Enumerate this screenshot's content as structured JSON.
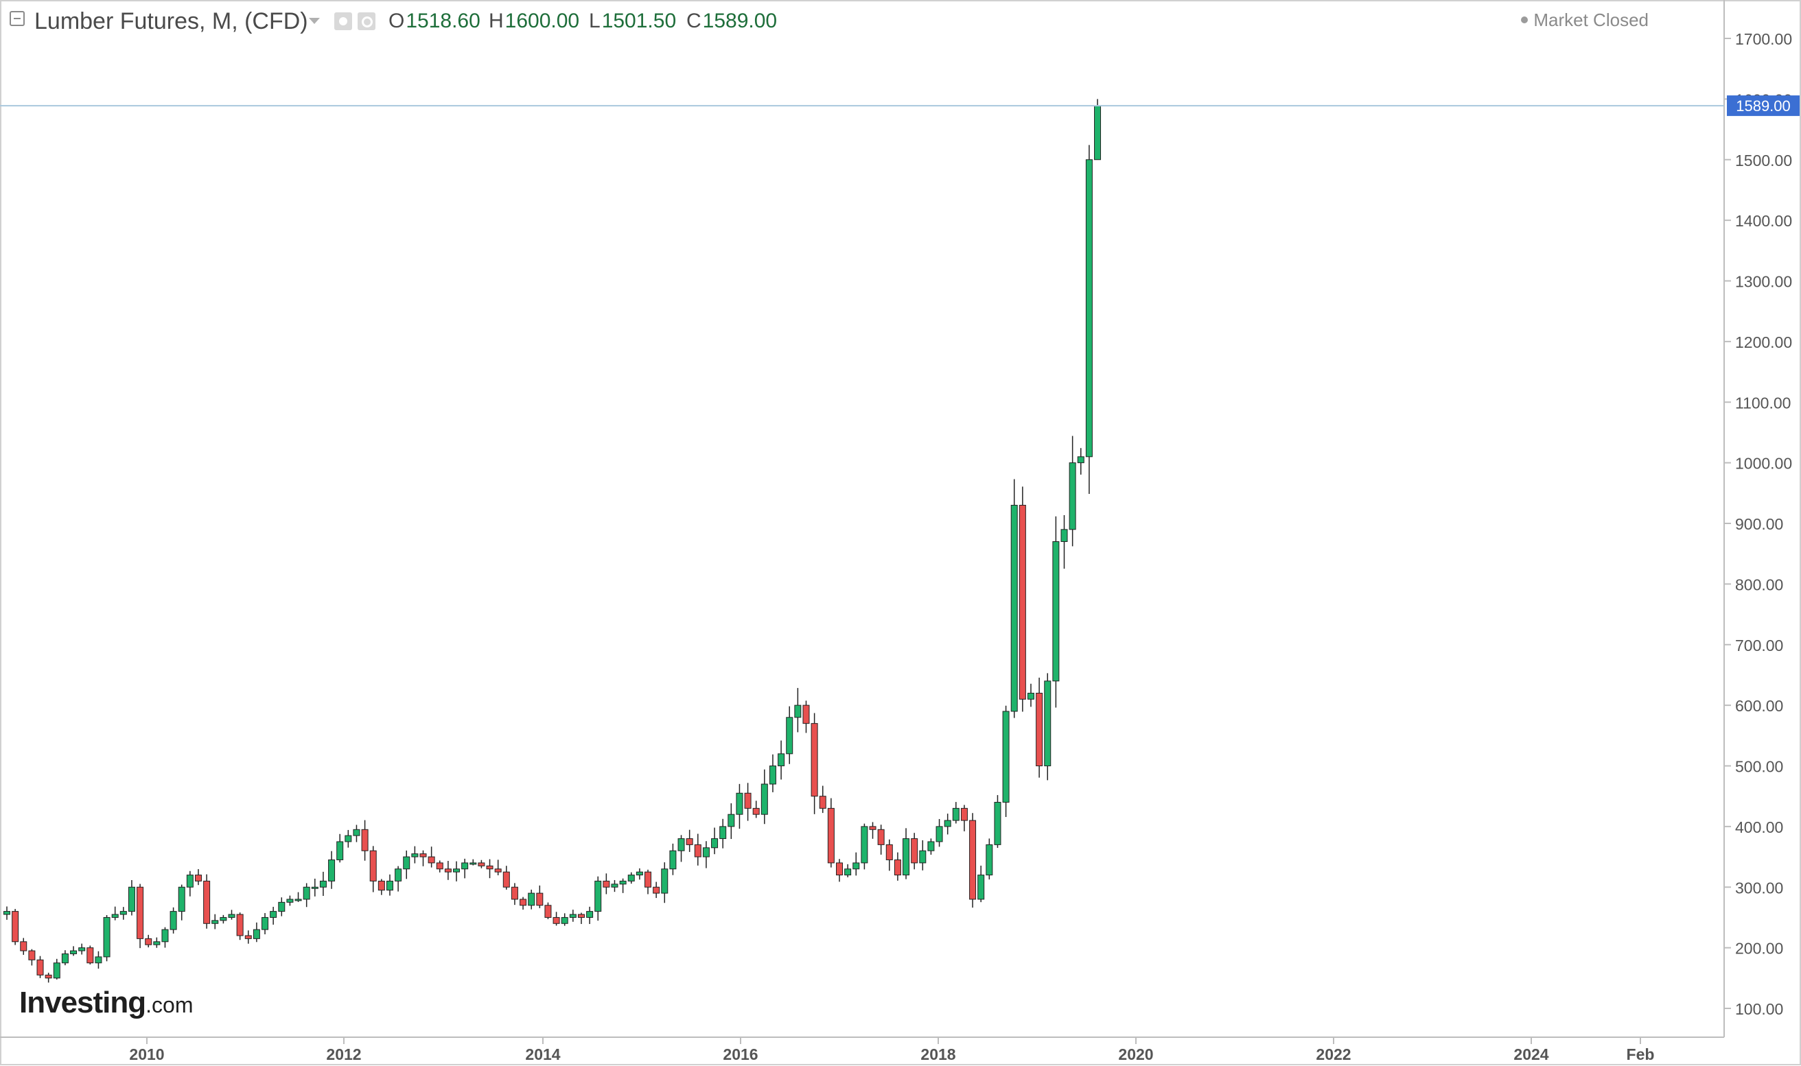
{
  "header": {
    "title": "Lumber Futures, M, (CFD)",
    "ohlc": [
      {
        "key": "O",
        "value": "1518.60"
      },
      {
        "key": "H",
        "value": "1600.00"
      },
      {
        "key": "L",
        "value": "1501.50"
      },
      {
        "key": "C",
        "value": "1589.00"
      }
    ],
    "market_status": "Market Closed"
  },
  "watermark": {
    "main": "Investing",
    "sub": ".com"
  },
  "colors": {
    "up": "#1fb36b",
    "down": "#e8504f",
    "wick": "#222222",
    "grid": "#d6d6d6",
    "price_line": "#a9c8dd",
    "price_label_bg": "#3b6fd3",
    "axis_text": "#555555"
  },
  "chart_data": {
    "type": "candlestick",
    "title": "Lumber Futures, M, (CFD)",
    "xlabel": "",
    "ylabel": "",
    "ylim": [
      60,
      1740
    ],
    "y_ticks": [
      "1700.00",
      "1600.00",
      "1500.00",
      "1400.00",
      "1300.00",
      "1200.00",
      "1100.00",
      "1000.00",
      "900.00",
      "800.00",
      "700.00",
      "600.00",
      "500.00",
      "400.00",
      "300.00",
      "200.00",
      "100.00"
    ],
    "x_ticks": [
      "2010",
      "2012",
      "2014",
      "2016",
      "2018",
      "2020",
      "2022",
      "2024",
      "Feb"
    ],
    "last_price_label": "1589.00",
    "last_price": 1589.0,
    "close_series": [
      260,
      210,
      195,
      180,
      155,
      150,
      175,
      190,
      195,
      200,
      175,
      185,
      250,
      255,
      260,
      300,
      215,
      205,
      210,
      230,
      260,
      300,
      320,
      310,
      240,
      245,
      250,
      255,
      220,
      215,
      230,
      250,
      260,
      275,
      280,
      280,
      300,
      300,
      310,
      345,
      375,
      385,
      395,
      360,
      310,
      295,
      310,
      330,
      350,
      355,
      350,
      340,
      330,
      325,
      330,
      340,
      340,
      335,
      330,
      325,
      300,
      280,
      270,
      290,
      270,
      250,
      240,
      250,
      255,
      250,
      260,
      310,
      300,
      305,
      310,
      320,
      325,
      300,
      290,
      330,
      360,
      380,
      370,
      350,
      365,
      380,
      400,
      420,
      455,
      430,
      420,
      470,
      500,
      520,
      580,
      600,
      570,
      450,
      430,
      340,
      320,
      330,
      340,
      400,
      395,
      370,
      345,
      320,
      380,
      340,
      360,
      375,
      400,
      410,
      430,
      410,
      280,
      320,
      370,
      440,
      590,
      930,
      610,
      620,
      500,
      640,
      870,
      890,
      1000,
      1010,
      1500,
      1589
    ]
  }
}
